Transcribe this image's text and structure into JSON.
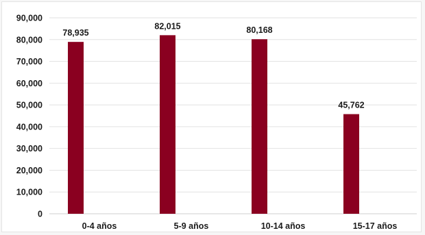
{
  "chart_data": {
    "type": "bar",
    "categories": [
      "0-4 años",
      "5-9 años",
      "10-14 años",
      "15-17 años"
    ],
    "values": [
      78935,
      82015,
      80168,
      45762
    ],
    "data_labels": [
      "78,935",
      "82,015",
      "80,168",
      "45,762"
    ],
    "y_ticks": [
      0,
      10000,
      20000,
      30000,
      40000,
      50000,
      60000,
      70000,
      80000,
      90000
    ],
    "y_tick_labels": [
      "0",
      "10,000",
      "20,000",
      "30,000",
      "40,000",
      "50,000",
      "60,000",
      "70,000",
      "80,000",
      "90,000"
    ],
    "ylim": [
      0,
      90000
    ],
    "grid": true,
    "legend": "none",
    "bar_color": "#8a0020",
    "title": "",
    "xlabel": "",
    "ylabel": ""
  }
}
